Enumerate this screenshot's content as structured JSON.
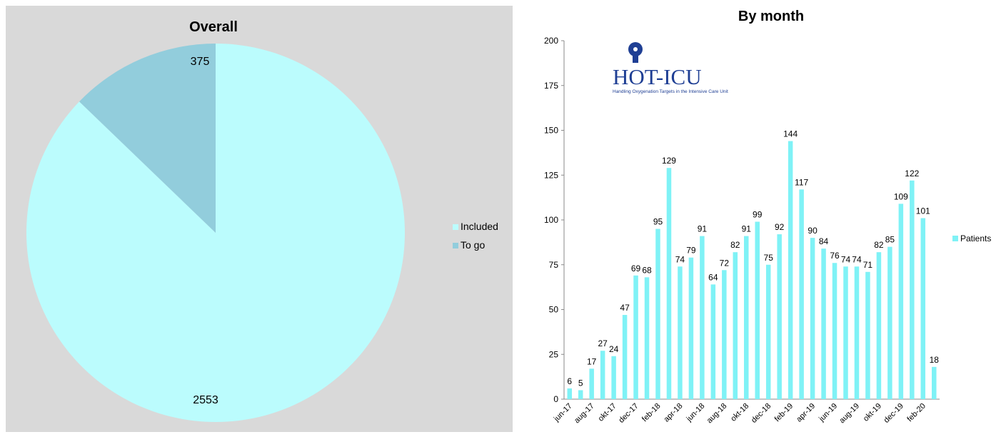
{
  "colors": {
    "included": "#bbfcfd",
    "to_go": "#92cddc",
    "patients": "#7ff2f6",
    "panel_bg": "#d9d9d9",
    "logo": "#1f3f94"
  },
  "logo": {
    "name": "HOT-ICU",
    "tagline": "Handling Oxygenation Targets in the Intensive Care Unit"
  },
  "chart_data": [
    {
      "type": "pie",
      "title": "Overall",
      "slices": [
        {
          "label": "Included",
          "value": 2553
        },
        {
          "label": "To go",
          "value": 375
        }
      ],
      "data_labels": [
        "2553",
        "375"
      ],
      "legend": [
        "Included",
        "To go"
      ],
      "legend_position": "right"
    },
    {
      "type": "bar",
      "title": "By month",
      "categories": [
        "jun-17",
        "jul-17",
        "aug-17",
        "sep-17",
        "okt-17",
        "nov-17",
        "dec-17",
        "jan-18",
        "feb-18",
        "mar-18",
        "apr-18",
        "maj-18",
        "jun-18",
        "jul-18",
        "aug-18",
        "sep-18",
        "okt-18",
        "nov-18",
        "dec-18",
        "jan-19",
        "feb-19",
        "mar-19",
        "apr-19",
        "maj-19",
        "jun-19",
        "jul-19",
        "aug-19",
        "sep-19",
        "okt-19",
        "nov-19",
        "dec-19",
        "jan-20",
        "feb-20",
        "mar-20"
      ],
      "shown_tick_labels": [
        "jun-17",
        "aug-17",
        "okt-17",
        "dec-17",
        "feb-18",
        "apr-18",
        "jun-18",
        "aug-18",
        "okt-18",
        "dec-18",
        "feb-19",
        "apr-19",
        "jun-19",
        "aug-19",
        "okt-19",
        "dec-19",
        "feb-20"
      ],
      "series": [
        {
          "name": "Patients",
          "values": [
            6,
            5,
            17,
            27,
            24,
            47,
            69,
            68,
            95,
            129,
            74,
            79,
            91,
            64,
            72,
            82,
            91,
            99,
            75,
            92,
            144,
            117,
            90,
            84,
            76,
            74,
            74,
            71,
            82,
            85,
            109,
            122,
            101,
            18
          ]
        }
      ],
      "ylim": [
        0,
        200
      ],
      "yticks": [
        0,
        25,
        50,
        75,
        100,
        125,
        150,
        175,
        200
      ],
      "legend_position": "right",
      "grid": false
    }
  ]
}
